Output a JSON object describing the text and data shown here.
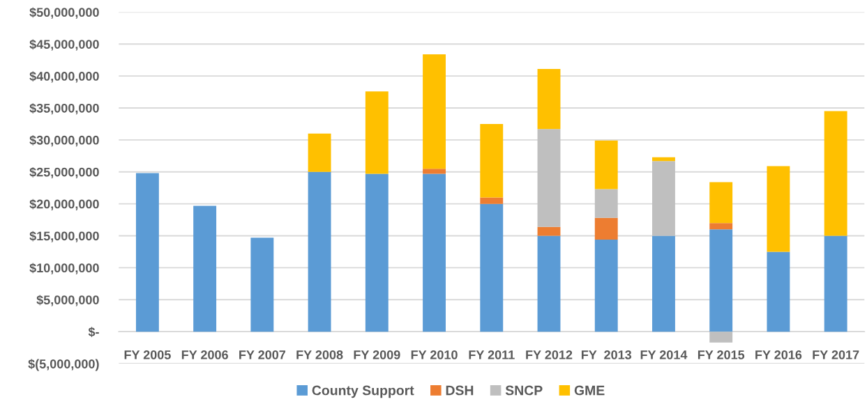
{
  "chart_data": {
    "type": "bar",
    "stacked": true,
    "categories": [
      "FY 2005",
      "FY 2006",
      "FY 2007",
      "FY 2008",
      "FY 2009",
      "FY 2010",
      "FY 2011",
      "FY 2012",
      "FY  2013",
      "FY 2014",
      "FY 2015",
      "FY 2016",
      "FY 2017"
    ],
    "series": [
      {
        "name": "County Support",
        "color": "#5b9bd5",
        "values": [
          24800000,
          19700000,
          14700000,
          25000000,
          24700000,
          24700000,
          20000000,
          15000000,
          14400000,
          15000000,
          16000000,
          12500000,
          15000000
        ]
      },
      {
        "name": "DSH",
        "color": "#ed7d31",
        "values": [
          null,
          null,
          null,
          null,
          null,
          800000,
          1000000,
          1400000,
          3400000,
          null,
          1000000,
          null,
          null
        ]
      },
      {
        "name": "SNCP",
        "color": "#bfbfbf",
        "values": [
          null,
          null,
          null,
          null,
          null,
          null,
          null,
          15300000,
          4500000,
          11700000,
          -1700000,
          null,
          null
        ]
      },
      {
        "name": "GME",
        "color": "#ffc000",
        "values": [
          null,
          null,
          null,
          6000000,
          12900000,
          17900000,
          11500000,
          9400000,
          7600000,
          600000,
          6400000,
          13400000,
          19500000
        ]
      }
    ],
    "ylim": [
      -5000000,
      50000000
    ],
    "yticks": [
      {
        "value": -5000000,
        "label": "$(5,000,000)"
      },
      {
        "value": 0,
        "label": "$-"
      },
      {
        "value": 5000000,
        "label": "$5,000,000"
      },
      {
        "value": 10000000,
        "label": "$10,000,000"
      },
      {
        "value": 15000000,
        "label": "$15,000,000"
      },
      {
        "value": 20000000,
        "label": "$20,000,000"
      },
      {
        "value": 25000000,
        "label": "$25,000,000"
      },
      {
        "value": 30000000,
        "label": "$30,000,000"
      },
      {
        "value": 35000000,
        "label": "$35,000,000"
      },
      {
        "value": 40000000,
        "label": "$40,000,000"
      },
      {
        "value": 45000000,
        "label": "$45,000,000"
      },
      {
        "value": 50000000,
        "label": "$50,000,000"
      }
    ],
    "grid": "y",
    "legend": "bottom"
  }
}
